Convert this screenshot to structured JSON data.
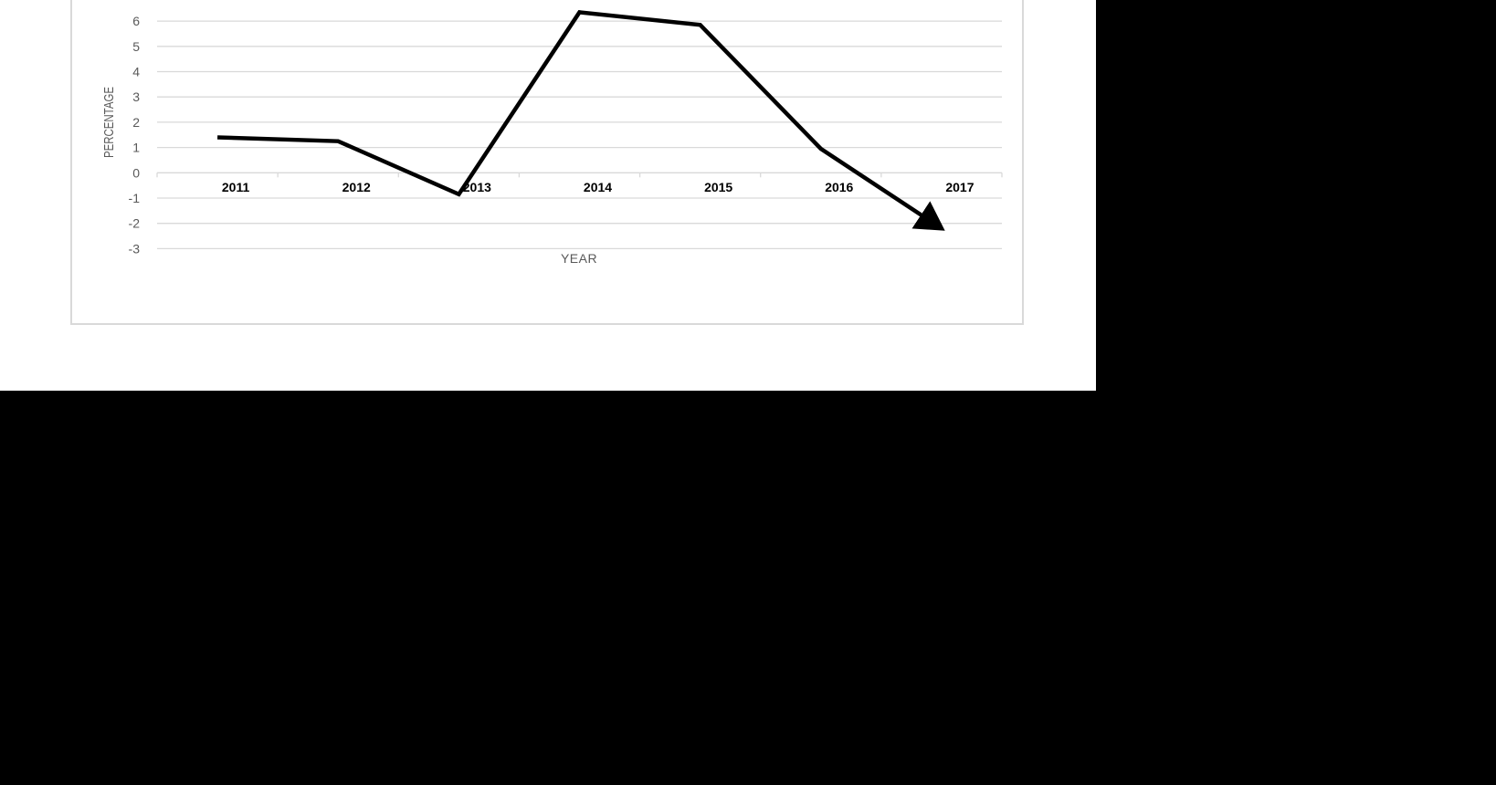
{
  "chart_data": {
    "type": "line",
    "title": "",
    "xlabel": "YEAR",
    "ylabel": "PERCENTAGE",
    "categories": [
      "2011",
      "2012",
      "2013",
      "2014",
      "2015",
      "2016",
      "2017"
    ],
    "series": [
      {
        "values": [
          1.4,
          1.25,
          -0.85,
          6.35,
          5.85,
          0.95,
          -2.2
        ],
        "color": "#000000",
        "end_marker": "arrow"
      }
    ],
    "yticks": [
      6,
      5,
      4,
      3,
      2,
      1,
      0,
      -1,
      -2,
      -3
    ],
    "ylim": [
      -3,
      6
    ],
    "grid": true,
    "legend": "none"
  }
}
